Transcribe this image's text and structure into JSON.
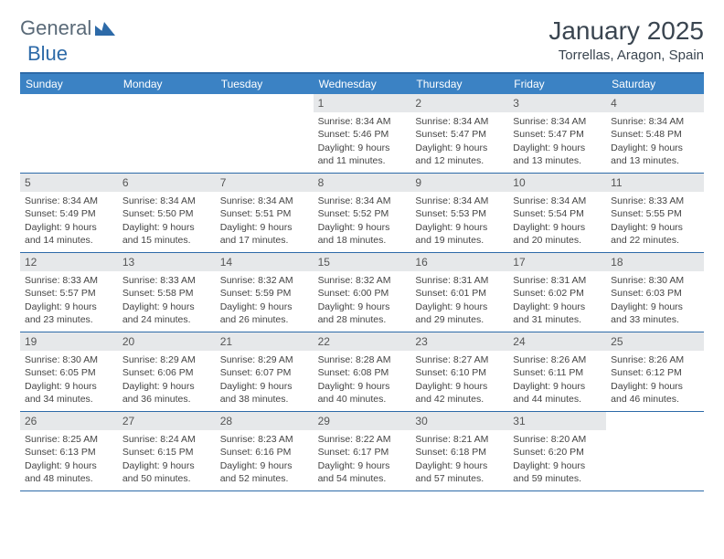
{
  "brand": {
    "part1": "General",
    "part2": "Blue"
  },
  "title": "January 2025",
  "location": "Torrellas, Aragon, Spain",
  "colors": {
    "header_bg": "#3b82c4",
    "border": "#2d6aa8",
    "daynum_bg": "#e6e8ea",
    "text": "#444444"
  },
  "day_headers": [
    "Sunday",
    "Monday",
    "Tuesday",
    "Wednesday",
    "Thursday",
    "Friday",
    "Saturday"
  ],
  "weeks": [
    [
      null,
      null,
      null,
      {
        "n": "1",
        "sr": "Sunrise: 8:34 AM",
        "ss": "Sunset: 5:46 PM",
        "d1": "Daylight: 9 hours",
        "d2": "and 11 minutes."
      },
      {
        "n": "2",
        "sr": "Sunrise: 8:34 AM",
        "ss": "Sunset: 5:47 PM",
        "d1": "Daylight: 9 hours",
        "d2": "and 12 minutes."
      },
      {
        "n": "3",
        "sr": "Sunrise: 8:34 AM",
        "ss": "Sunset: 5:47 PM",
        "d1": "Daylight: 9 hours",
        "d2": "and 13 minutes."
      },
      {
        "n": "4",
        "sr": "Sunrise: 8:34 AM",
        "ss": "Sunset: 5:48 PM",
        "d1": "Daylight: 9 hours",
        "d2": "and 13 minutes."
      }
    ],
    [
      {
        "n": "5",
        "sr": "Sunrise: 8:34 AM",
        "ss": "Sunset: 5:49 PM",
        "d1": "Daylight: 9 hours",
        "d2": "and 14 minutes."
      },
      {
        "n": "6",
        "sr": "Sunrise: 8:34 AM",
        "ss": "Sunset: 5:50 PM",
        "d1": "Daylight: 9 hours",
        "d2": "and 15 minutes."
      },
      {
        "n": "7",
        "sr": "Sunrise: 8:34 AM",
        "ss": "Sunset: 5:51 PM",
        "d1": "Daylight: 9 hours",
        "d2": "and 17 minutes."
      },
      {
        "n": "8",
        "sr": "Sunrise: 8:34 AM",
        "ss": "Sunset: 5:52 PM",
        "d1": "Daylight: 9 hours",
        "d2": "and 18 minutes."
      },
      {
        "n": "9",
        "sr": "Sunrise: 8:34 AM",
        "ss": "Sunset: 5:53 PM",
        "d1": "Daylight: 9 hours",
        "d2": "and 19 minutes."
      },
      {
        "n": "10",
        "sr": "Sunrise: 8:34 AM",
        "ss": "Sunset: 5:54 PM",
        "d1": "Daylight: 9 hours",
        "d2": "and 20 minutes."
      },
      {
        "n": "11",
        "sr": "Sunrise: 8:33 AM",
        "ss": "Sunset: 5:55 PM",
        "d1": "Daylight: 9 hours",
        "d2": "and 22 minutes."
      }
    ],
    [
      {
        "n": "12",
        "sr": "Sunrise: 8:33 AM",
        "ss": "Sunset: 5:57 PM",
        "d1": "Daylight: 9 hours",
        "d2": "and 23 minutes."
      },
      {
        "n": "13",
        "sr": "Sunrise: 8:33 AM",
        "ss": "Sunset: 5:58 PM",
        "d1": "Daylight: 9 hours",
        "d2": "and 24 minutes."
      },
      {
        "n": "14",
        "sr": "Sunrise: 8:32 AM",
        "ss": "Sunset: 5:59 PM",
        "d1": "Daylight: 9 hours",
        "d2": "and 26 minutes."
      },
      {
        "n": "15",
        "sr": "Sunrise: 8:32 AM",
        "ss": "Sunset: 6:00 PM",
        "d1": "Daylight: 9 hours",
        "d2": "and 28 minutes."
      },
      {
        "n": "16",
        "sr": "Sunrise: 8:31 AM",
        "ss": "Sunset: 6:01 PM",
        "d1": "Daylight: 9 hours",
        "d2": "and 29 minutes."
      },
      {
        "n": "17",
        "sr": "Sunrise: 8:31 AM",
        "ss": "Sunset: 6:02 PM",
        "d1": "Daylight: 9 hours",
        "d2": "and 31 minutes."
      },
      {
        "n": "18",
        "sr": "Sunrise: 8:30 AM",
        "ss": "Sunset: 6:03 PM",
        "d1": "Daylight: 9 hours",
        "d2": "and 33 minutes."
      }
    ],
    [
      {
        "n": "19",
        "sr": "Sunrise: 8:30 AM",
        "ss": "Sunset: 6:05 PM",
        "d1": "Daylight: 9 hours",
        "d2": "and 34 minutes."
      },
      {
        "n": "20",
        "sr": "Sunrise: 8:29 AM",
        "ss": "Sunset: 6:06 PM",
        "d1": "Daylight: 9 hours",
        "d2": "and 36 minutes."
      },
      {
        "n": "21",
        "sr": "Sunrise: 8:29 AM",
        "ss": "Sunset: 6:07 PM",
        "d1": "Daylight: 9 hours",
        "d2": "and 38 minutes."
      },
      {
        "n": "22",
        "sr": "Sunrise: 8:28 AM",
        "ss": "Sunset: 6:08 PM",
        "d1": "Daylight: 9 hours",
        "d2": "and 40 minutes."
      },
      {
        "n": "23",
        "sr": "Sunrise: 8:27 AM",
        "ss": "Sunset: 6:10 PM",
        "d1": "Daylight: 9 hours",
        "d2": "and 42 minutes."
      },
      {
        "n": "24",
        "sr": "Sunrise: 8:26 AM",
        "ss": "Sunset: 6:11 PM",
        "d1": "Daylight: 9 hours",
        "d2": "and 44 minutes."
      },
      {
        "n": "25",
        "sr": "Sunrise: 8:26 AM",
        "ss": "Sunset: 6:12 PM",
        "d1": "Daylight: 9 hours",
        "d2": "and 46 minutes."
      }
    ],
    [
      {
        "n": "26",
        "sr": "Sunrise: 8:25 AM",
        "ss": "Sunset: 6:13 PM",
        "d1": "Daylight: 9 hours",
        "d2": "and 48 minutes."
      },
      {
        "n": "27",
        "sr": "Sunrise: 8:24 AM",
        "ss": "Sunset: 6:15 PM",
        "d1": "Daylight: 9 hours",
        "d2": "and 50 minutes."
      },
      {
        "n": "28",
        "sr": "Sunrise: 8:23 AM",
        "ss": "Sunset: 6:16 PM",
        "d1": "Daylight: 9 hours",
        "d2": "and 52 minutes."
      },
      {
        "n": "29",
        "sr": "Sunrise: 8:22 AM",
        "ss": "Sunset: 6:17 PM",
        "d1": "Daylight: 9 hours",
        "d2": "and 54 minutes."
      },
      {
        "n": "30",
        "sr": "Sunrise: 8:21 AM",
        "ss": "Sunset: 6:18 PM",
        "d1": "Daylight: 9 hours",
        "d2": "and 57 minutes."
      },
      {
        "n": "31",
        "sr": "Sunrise: 8:20 AM",
        "ss": "Sunset: 6:20 PM",
        "d1": "Daylight: 9 hours",
        "d2": "and 59 minutes."
      },
      null
    ]
  ]
}
